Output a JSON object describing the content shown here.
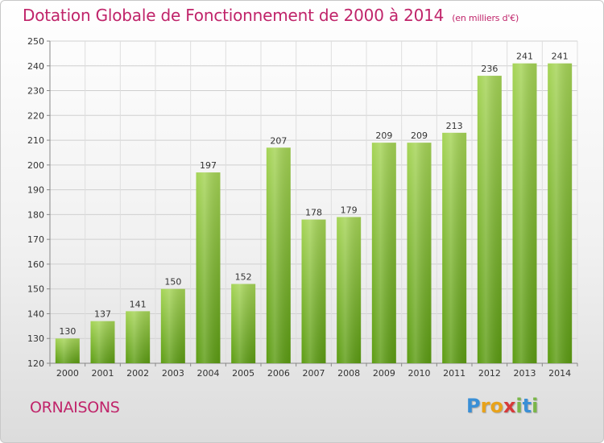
{
  "title": "Dotation Globale de Fonctionnement de 2000 à 2014",
  "subtitle": "(en milliers d'€)",
  "commune": "ORNAISONS",
  "logo": {
    "letters": [
      "P",
      "r",
      "o",
      "x",
      "i",
      "t",
      "i"
    ],
    "colors": [
      "#3a8fd6",
      "#e8a21a",
      "#e8a21a",
      "#d63a3a",
      "#7ab648",
      "#3a8fd6",
      "#7ab648"
    ]
  },
  "colors": {
    "bar_top": "#a5d456",
    "bar_bottom": "#5c9c13",
    "accent": "#c0246a"
  },
  "chart_data": {
    "type": "bar",
    "categories": [
      "2000",
      "2001",
      "2002",
      "2003",
      "2004",
      "2005",
      "2006",
      "2007",
      "2008",
      "2009",
      "2010",
      "2011",
      "2012",
      "2013",
      "2014"
    ],
    "values": [
      130,
      137,
      141,
      150,
      197,
      152,
      207,
      178,
      179,
      209,
      209,
      213,
      236,
      241,
      241
    ],
    "ylim": [
      120,
      250
    ],
    "yticks": [
      120,
      130,
      140,
      150,
      160,
      170,
      180,
      190,
      200,
      210,
      220,
      230,
      240,
      250
    ],
    "grid": true,
    "legend": "none"
  }
}
